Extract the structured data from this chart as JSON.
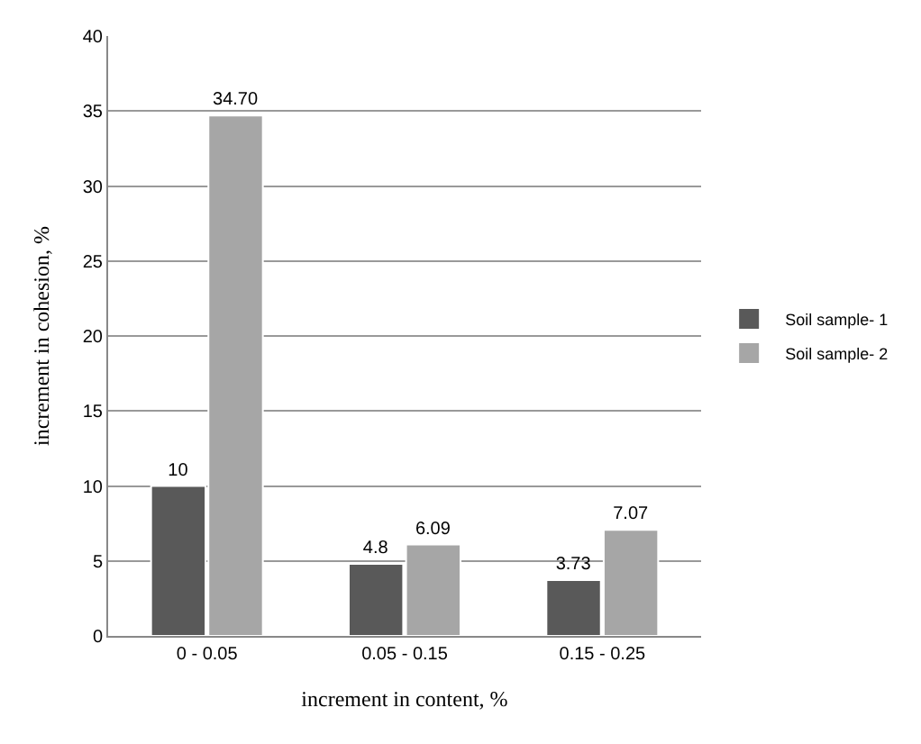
{
  "chart_data": {
    "type": "bar",
    "xlabel": "increment in content, %",
    "ylabel": "increment in cohesion, %",
    "categories": [
      "0 - 0.05",
      "0.05 - 0.15",
      "0.15 - 0.25"
    ],
    "series": [
      {
        "name": "Soil sample- 1",
        "color": "#595959",
        "values": [
          10,
          4.8,
          3.73
        ],
        "value_labels": [
          "10",
          "4.8",
          "3.73"
        ]
      },
      {
        "name": "Soil sample- 2",
        "color": "#a6a6a6",
        "values": [
          34.7,
          6.09,
          7.07
        ],
        "value_labels": [
          "34.70",
          "6.09",
          "7.07"
        ]
      }
    ],
    "ylim": [
      0,
      40
    ],
    "yticks": [
      0,
      5,
      10,
      15,
      20,
      25,
      30,
      35,
      40
    ],
    "grid": "y",
    "legend": "right"
  }
}
